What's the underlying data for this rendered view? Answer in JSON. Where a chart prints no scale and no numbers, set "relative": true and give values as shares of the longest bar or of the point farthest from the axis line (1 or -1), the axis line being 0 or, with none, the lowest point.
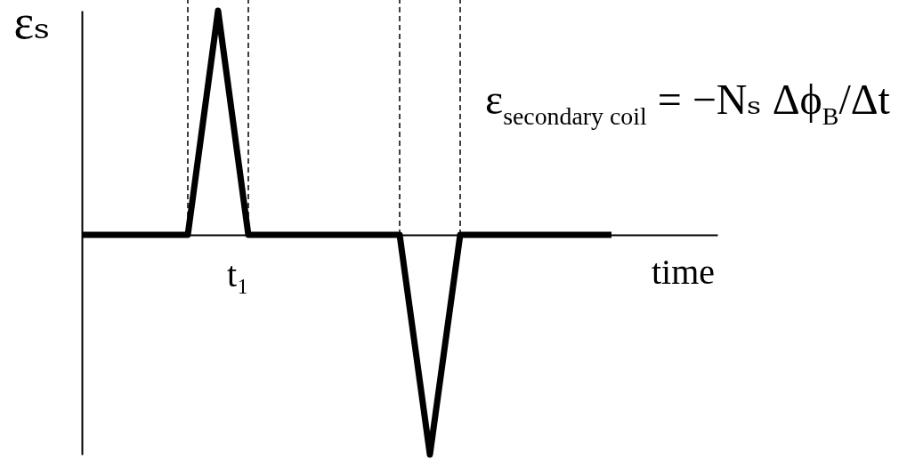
{
  "chart_data": {
    "type": "line",
    "relative": true,
    "ylabel": "εₛ",
    "xlabel": "time",
    "categories": [
      null,
      null,
      null,
      null,
      null,
      null,
      null,
      null,
      null,
      null,
      null,
      null,
      null,
      null,
      null,
      null,
      null,
      null,
      null,
      null,
      null,
      null,
      null,
      null,
      null,
      null,
      null,
      null,
      null,
      null,
      null,
      null,
      null,
      null,
      null,
      null,
      null,
      null,
      null,
      null,
      null,
      null,
      null
    ],
    "series": [
      {
        "color": "#000000",
        "values": [
          0,
          0,
          0,
          0,
          0,
          0,
          0,
          0,
          0.5,
          1,
          0.5,
          0,
          0,
          0,
          0,
          0,
          0,
          0,
          0,
          0,
          0,
          0,
          -0.49,
          -0.98,
          -0.49,
          0,
          0,
          0,
          0,
          0,
          0,
          0,
          0,
          0,
          0,
          0,
          null,
          null,
          null,
          null,
          null,
          null,
          null
        ]
      }
    ],
    "annotations": [
      "ε$_{secondary coil}$ = −Nₛ Δϕ$_{B}$/Δt",
      "t₁"
    ]
  }
}
